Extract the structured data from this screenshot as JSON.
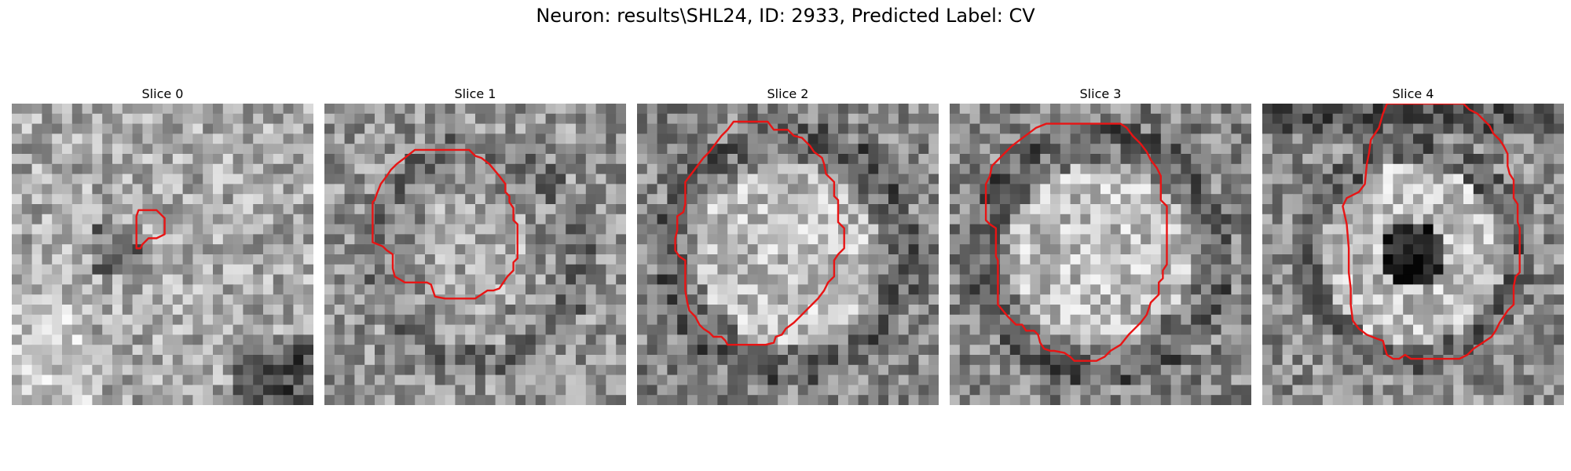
{
  "figure": {
    "title": "Neuron: results\\SHL24, ID: 2933, Predicted Label: CV",
    "grid_size": 30,
    "contour_color": "#e81414",
    "colormap": "gray",
    "panels": [
      {
        "title": "Slice 0",
        "pattern": "background",
        "seed": 11
      },
      {
        "title": "Slice 1",
        "pattern": "ring",
        "seed": 23
      },
      {
        "title": "Slice 2",
        "pattern": "bright-disc",
        "seed": 37
      },
      {
        "title": "Slice 3",
        "pattern": "bright-disc",
        "seed": 41
      },
      {
        "title": "Slice 4",
        "pattern": "donut",
        "seed": 53
      }
    ]
  }
}
